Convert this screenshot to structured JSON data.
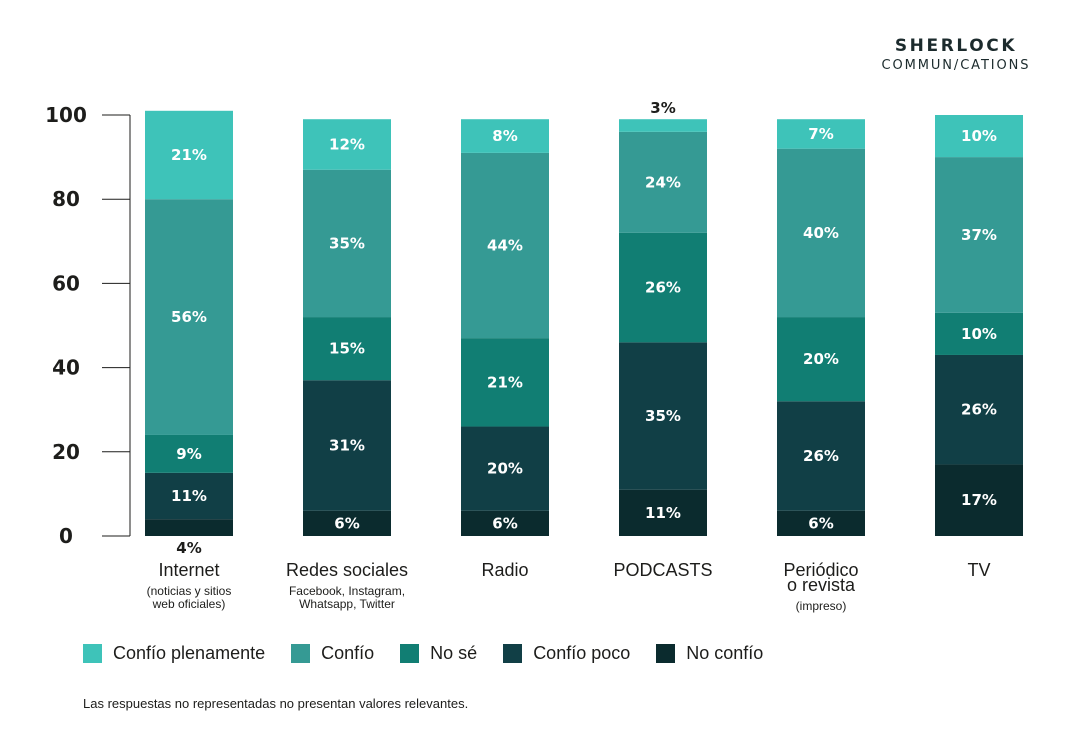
{
  "brand": {
    "line1": "SHERLOCK",
    "line2": "COMMUN/CATIONS"
  },
  "chart_data": {
    "type": "bar",
    "stacked": true,
    "title": "",
    "xlabel": "",
    "ylabel": "",
    "ylim": [
      0,
      100
    ],
    "yticks": [
      0,
      20,
      40,
      60,
      80,
      100
    ],
    "grid": false,
    "legend_position": "bottom",
    "categories": [
      "Internet",
      "Redes sociales",
      "Radio",
      "PODCASTS",
      "Periódico o revista",
      "TV"
    ],
    "category_labels": [
      {
        "main": [
          "Internet"
        ],
        "sub": [
          "(noticias y sitios",
          "web oficiales)"
        ]
      },
      {
        "main": [
          "Redes sociales"
        ],
        "sub": [
          "Facebook, Instagram,",
          "Whatsapp, Twitter"
        ]
      },
      {
        "main": [
          "Radio"
        ],
        "sub": []
      },
      {
        "main": [
          "PODCASTS"
        ],
        "sub": []
      },
      {
        "main": [
          "Periódico",
          "o revista"
        ],
        "sub": [
          "(impreso)"
        ]
      },
      {
        "main": [
          "TV"
        ],
        "sub": []
      }
    ],
    "series": [
      {
        "name": "No confío",
        "color": "#0b2b2e",
        "values": [
          4,
          6,
          6,
          11,
          6,
          17
        ]
      },
      {
        "name": "Confío poco",
        "color": "#113f46",
        "values": [
          11,
          31,
          20,
          35,
          26,
          26
        ]
      },
      {
        "name": "No sé",
        "color": "#117e73",
        "values": [
          9,
          15,
          21,
          26,
          20,
          10
        ]
      },
      {
        "name": "Confío",
        "color": "#359a94",
        "values": [
          56,
          35,
          44,
          24,
          40,
          37
        ]
      },
      {
        "name": "Confío plenamente",
        "color": "#3ec3b9",
        "values": [
          21,
          12,
          8,
          3,
          7,
          10
        ]
      }
    ],
    "data_labels_suffix": "%"
  },
  "legend": [
    {
      "label": "Confío plenamente",
      "color": "#3ec3b9"
    },
    {
      "label": "Confío",
      "color": "#359a94"
    },
    {
      "label": "No sé",
      "color": "#117e73"
    },
    {
      "label": "Confío poco",
      "color": "#113f46"
    },
    {
      "label": "No confío",
      "color": "#0b2b2e"
    }
  ],
  "footnote": "Las respuestas no representadas no presentan valores relevantes."
}
